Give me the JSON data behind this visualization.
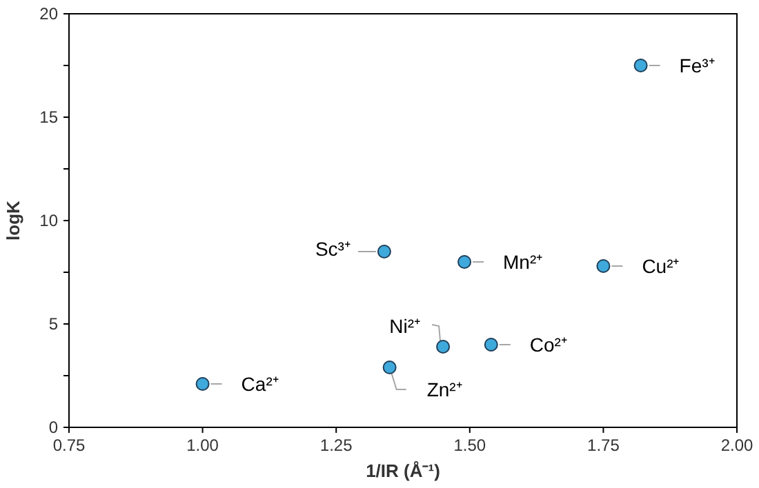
{
  "chart_data": {
    "type": "scatter",
    "xlabel": "1/IR (Å⁻¹)",
    "ylabel": "logK",
    "x": [
      1.0,
      1.35,
      1.45,
      1.54,
      1.34,
      1.49,
      1.75,
      1.82
    ],
    "values": [
      2.1,
      2.9,
      3.9,
      4.0,
      8.5,
      8.0,
      7.8,
      17.5
    ],
    "color": "#3fa9dc",
    "marker": "circle",
    "grid": false,
    "xlim": [
      0.75,
      2.0
    ],
    "ylim": [
      0,
      20
    ],
    "xticks": [
      {
        "value": 0.75,
        "label": "0.75"
      },
      {
        "value": 1,
        "label": "1.00"
      },
      {
        "value": 1.25,
        "label": "1.25"
      },
      {
        "value": 1.5,
        "label": "1.50"
      },
      {
        "value": 1.75,
        "label": "1.75"
      },
      {
        "value": 2,
        "label": "2.00"
      }
    ],
    "yticks": [
      0,
      {
        "value": 2.5,
        "label": null
      },
      5,
      {
        "value": 7.5,
        "label": null
      },
      10,
      {
        "value": 12.5,
        "label": null
      },
      15,
      {
        "value": 17.5,
        "label": null
      },
      20
    ],
    "annotations": [
      {
        "text": "Ca²⁺",
        "x": 1.0,
        "y": 2.1
      },
      {
        "text": "Zn²⁺",
        "x": 1.35,
        "y": 2.9
      },
      {
        "text": "Ni²⁺",
        "x": 1.45,
        "y": 3.9
      },
      {
        "text": "Co²⁺",
        "x": 1.54,
        "y": 4.0
      },
      {
        "text": "Sc³⁺",
        "x": 1.34,
        "y": 8.5
      },
      {
        "text": "Mn²⁺",
        "x": 1.49,
        "y": 8.0
      },
      {
        "text": "Cu²⁺",
        "x": 1.75,
        "y": 7.8
      },
      {
        "text": "Fe³⁺",
        "x": 1.82,
        "y": 17.5
      }
    ]
  }
}
